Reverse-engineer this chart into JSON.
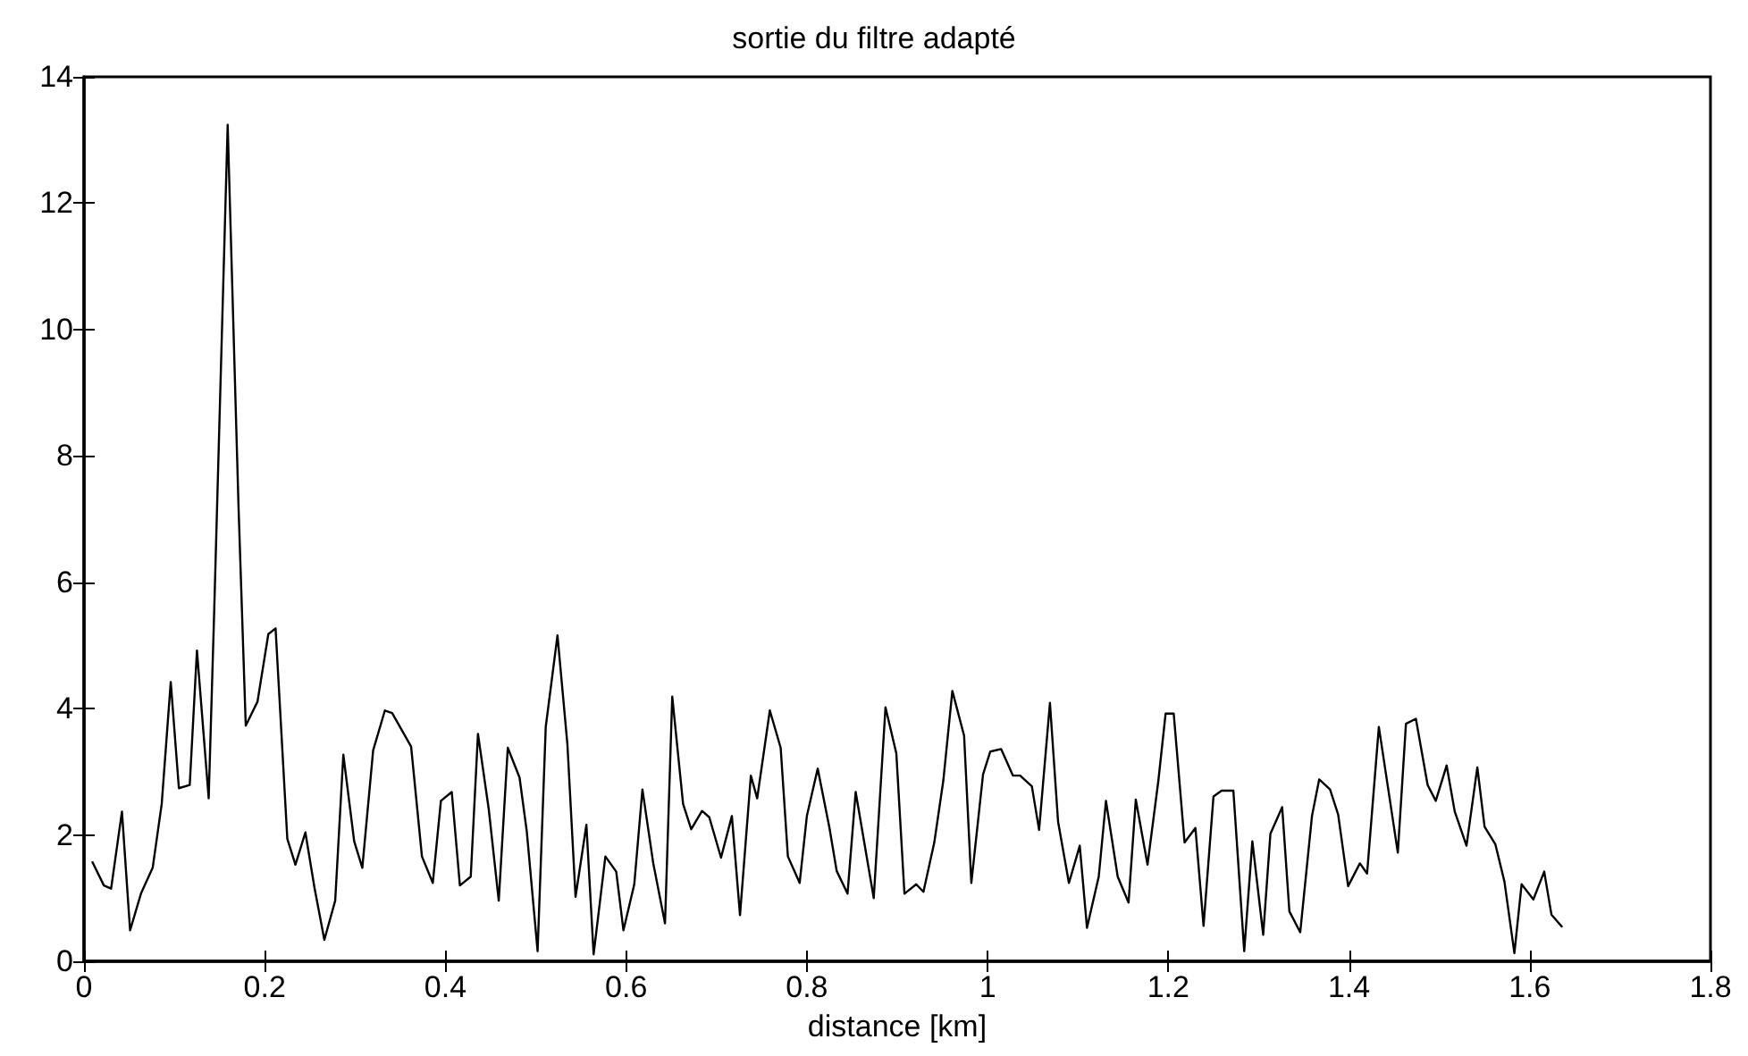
{
  "chart_data": {
    "type": "line",
    "title": "sortie du filtre adapté",
    "xlabel": "distance [km]",
    "x": [
      0.009,
      0.022,
      0.03,
      0.042,
      0.051,
      0.063,
      0.076,
      0.086,
      0.096,
      0.105,
      0.117,
      0.125,
      0.138,
      0.144,
      0.159,
      0.171,
      0.179,
      0.192,
      0.204,
      0.212,
      0.225,
      0.234,
      0.245,
      0.255,
      0.266,
      0.278,
      0.287,
      0.299,
      0.308,
      0.32,
      0.333,
      0.341,
      0.362,
      0.374,
      0.386,
      0.395,
      0.407,
      0.416,
      0.428,
      0.436,
      0.448,
      0.459,
      0.469,
      0.482,
      0.49,
      0.502,
      0.511,
      0.524,
      0.535,
      0.544,
      0.556,
      0.564,
      0.577,
      0.589,
      0.597,
      0.609,
      0.618,
      0.63,
      0.643,
      0.651,
      0.663,
      0.672,
      0.684,
      0.692,
      0.705,
      0.717,
      0.726,
      0.738,
      0.745,
      0.759,
      0.771,
      0.779,
      0.792,
      0.8,
      0.812,
      0.825,
      0.833,
      0.845,
      0.854,
      0.874,
      0.887,
      0.899,
      0.908,
      0.921,
      0.929,
      0.941,
      0.951,
      0.961,
      0.974,
      0.982,
      0.995,
      1.003,
      1.015,
      1.028,
      1.036,
      1.049,
      1.057,
      1.069,
      1.078,
      1.09,
      1.102,
      1.11,
      1.123,
      1.131,
      1.144,
      1.156,
      1.164,
      1.177,
      1.189,
      1.197,
      1.206,
      1.218,
      1.23,
      1.239,
      1.25,
      1.259,
      1.272,
      1.284,
      1.293,
      1.305,
      1.313,
      1.326,
      1.334,
      1.346,
      1.359,
      1.367,
      1.379,
      1.388,
      1.399,
      1.412,
      1.42,
      1.433,
      1.454,
      1.463,
      1.474,
      1.487,
      1.496,
      1.508,
      1.517,
      1.53,
      1.542,
      1.55,
      1.562,
      1.572,
      1.583,
      1.591,
      1.604,
      1.616,
      1.624,
      1.636
    ],
    "series": [
      {
        "color": "#000000",
        "values": [
          1.58,
          1.2,
          1.15,
          2.37,
          0.49,
          1.07,
          1.48,
          2.49,
          4.42,
          2.74,
          2.79,
          4.92,
          2.58,
          5.5,
          13.24,
          7.2,
          3.73,
          4.11,
          5.18,
          5.27,
          1.94,
          1.53,
          2.04,
          1.17,
          0.34,
          0.96,
          3.27,
          1.9,
          1.48,
          3.34,
          3.97,
          3.93,
          3.4,
          1.66,
          1.24,
          2.54,
          2.68,
          1.2,
          1.34,
          3.6,
          2.4,
          0.96,
          3.38,
          2.91,
          2.06,
          0.16,
          3.71,
          5.16,
          3.43,
          1.02,
          2.16,
          0.11,
          1.66,
          1.42,
          0.49,
          1.22,
          2.72,
          1.55,
          0.6,
          4.19,
          2.49,
          2.09,
          2.38,
          2.28,
          1.64,
          2.3,
          0.73,
          2.94,
          2.58,
          3.97,
          3.38,
          1.66,
          1.24,
          2.3,
          3.05,
          2.11,
          1.43,
          1.07,
          2.68,
          1.0,
          4.02,
          3.29,
          1.07,
          1.22,
          1.1,
          1.88,
          2.86,
          4.28,
          3.57,
          1.24,
          2.96,
          3.32,
          3.36,
          2.94,
          2.94,
          2.77,
          2.08,
          4.09,
          2.21,
          1.24,
          1.83,
          0.53,
          1.34,
          2.54,
          1.34,
          0.93,
          2.56,
          1.53,
          2.86,
          3.92,
          3.92,
          1.88,
          2.11,
          0.56,
          2.61,
          2.7,
          2.7,
          0.16,
          1.9,
          0.42,
          2.02,
          2.44,
          0.79,
          0.46,
          2.3,
          2.88,
          2.72,
          2.32,
          1.19,
          1.55,
          1.39,
          3.71,
          1.72,
          3.76,
          3.84,
          2.79,
          2.54,
          3.1,
          2.37,
          1.83,
          3.07,
          2.13,
          1.85,
          1.26,
          0.13,
          1.22,
          0.98,
          1.42,
          0.74,
          0.54
        ]
      }
    ],
    "xlim": [
      0,
      1.8
    ],
    "xticks": [
      0,
      0.2,
      0.4,
      0.6,
      0.8,
      1,
      1.2,
      1.4,
      1.6,
      1.8
    ],
    "ylim": [
      0,
      14
    ],
    "yticks": [
      0,
      2,
      4,
      6,
      8,
      10,
      12,
      14
    ],
    "grid": false,
    "marker": "none",
    "line_style": "solid"
  }
}
